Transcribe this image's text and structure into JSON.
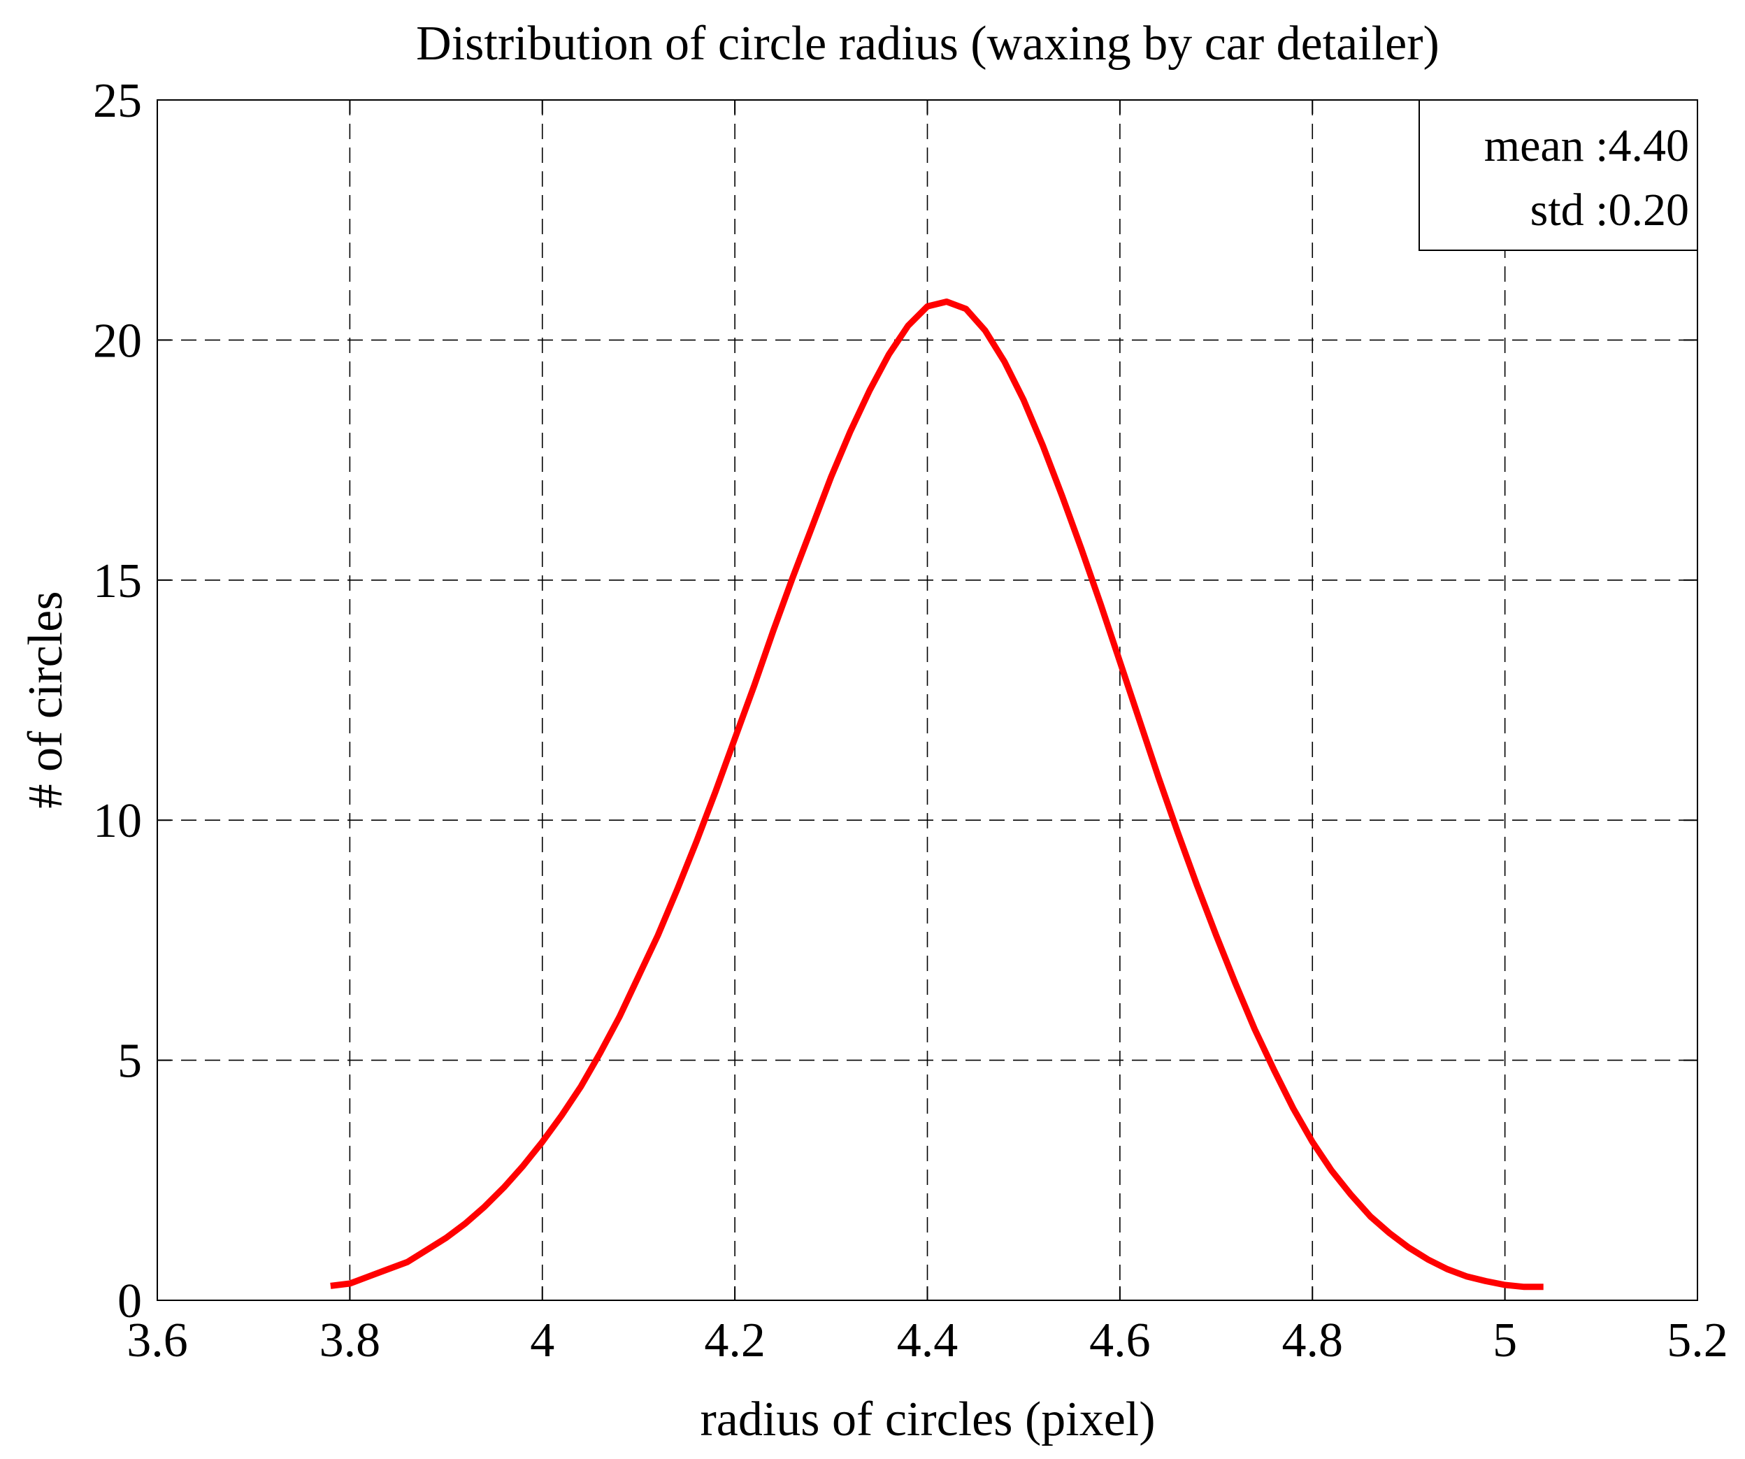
{
  "chart_data": {
    "type": "line",
    "title": "Distribution of circle radius (waxing by car detailer)",
    "xlabel": "radius of circles (pixel)",
    "ylabel": "# of circles",
    "xlim": [
      3.6,
      5.2
    ],
    "ylim": [
      0,
      25
    ],
    "xticks": [
      3.6,
      3.8,
      4.0,
      4.2,
      4.4,
      4.6,
      4.8,
      5.0,
      5.2
    ],
    "xtick_labels": [
      "3.6",
      "3.8",
      "4",
      "4.2",
      "4.4",
      "4.6",
      "4.8",
      "5",
      "5.2"
    ],
    "yticks": [
      0,
      5,
      10,
      15,
      20,
      25
    ],
    "ytick_labels": [
      "0",
      "5",
      "10",
      "15",
      "20",
      "25"
    ],
    "grid": true,
    "grid_style": "dashed",
    "legend": {
      "placement": "top-right",
      "lines": [
        "mean :4.40",
        "std :0.20"
      ]
    },
    "series": [
      {
        "color": "#ff0000",
        "x": [
          3.78,
          3.8,
          3.82,
          3.84,
          3.86,
          3.88,
          3.9,
          3.92,
          3.94,
          3.96,
          3.98,
          4.0,
          4.02,
          4.04,
          4.06,
          4.08,
          4.1,
          4.12,
          4.14,
          4.16,
          4.18,
          4.2,
          4.22,
          4.24,
          4.26,
          4.28,
          4.3,
          4.32,
          4.34,
          4.36,
          4.38,
          4.4,
          4.42,
          4.44,
          4.46,
          4.48,
          4.5,
          4.52,
          4.54,
          4.56,
          4.58,
          4.6,
          4.62,
          4.64,
          4.66,
          4.68,
          4.7,
          4.72,
          4.74,
          4.76,
          4.78,
          4.8,
          4.82,
          4.84,
          4.86,
          4.88,
          4.9,
          4.92,
          4.94,
          4.96,
          4.98,
          5.0,
          5.02,
          5.04
        ],
        "y": [
          0.3,
          0.35,
          0.5,
          0.65,
          0.8,
          1.05,
          1.3,
          1.6,
          1.95,
          2.35,
          2.8,
          3.3,
          3.85,
          4.45,
          5.15,
          5.9,
          6.75,
          7.6,
          8.55,
          9.55,
          10.6,
          11.7,
          12.8,
          13.95,
          15.05,
          16.1,
          17.15,
          18.1,
          18.95,
          19.7,
          20.3,
          20.7,
          20.8,
          20.65,
          20.2,
          19.55,
          18.75,
          17.8,
          16.75,
          15.65,
          14.5,
          13.3,
          12.1,
          10.9,
          9.75,
          8.65,
          7.6,
          6.6,
          5.65,
          4.8,
          4.0,
          3.3,
          2.7,
          2.2,
          1.75,
          1.4,
          1.1,
          0.85,
          0.65,
          0.5,
          0.4,
          0.32,
          0.28,
          0.28
        ]
      }
    ]
  }
}
